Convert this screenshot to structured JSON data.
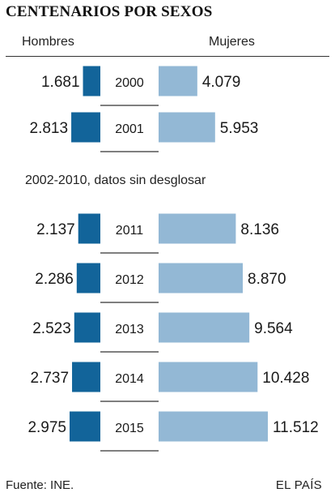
{
  "title": "CENTENARIOS POR SEXOS",
  "note": "2002-2010, datos sin desglosar",
  "source": "Fuente: INE.",
  "brand": "EL PAÍS",
  "colors": {
    "men": "#12649a",
    "women": "#93b8d5",
    "divider": "#333333"
  },
  "chart_data": {
    "type": "bar",
    "orientation": "horizontal-diverging",
    "categories": [
      "2000",
      "2001",
      "2011",
      "2012",
      "2013",
      "2014",
      "2015"
    ],
    "series": [
      {
        "name": "Hombres",
        "values": [
          1681,
          2813,
          2137,
          2286,
          2523,
          2737,
          2975
        ],
        "labels": [
          "1.681",
          "2.813",
          "2.137",
          "2.286",
          "2.523",
          "2.737",
          "2.975"
        ]
      },
      {
        "name": "Mujeres",
        "values": [
          4079,
          5953,
          8136,
          8870,
          9564,
          10428,
          11512
        ],
        "labels": [
          "4.079",
          "5.953",
          "8.136",
          "8.870",
          "9.564",
          "10.428",
          "11.512"
        ]
      }
    ],
    "title": "CENTENARIOS POR SEXOS",
    "xlabel": "",
    "ylabel": ""
  }
}
